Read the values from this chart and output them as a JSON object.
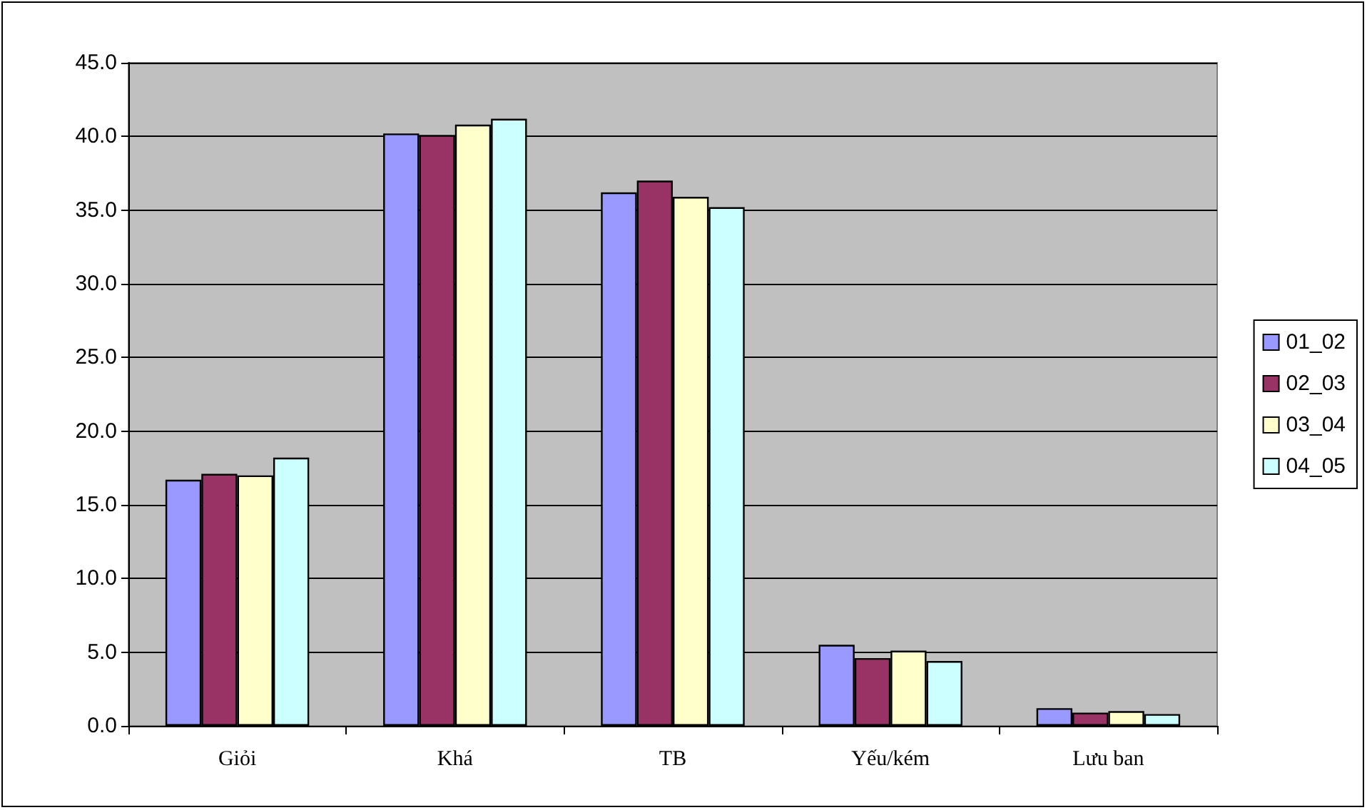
{
  "chart_data": {
    "type": "bar",
    "categories": [
      "Giỏi",
      "Khá",
      "TB",
      "Yếu/kém",
      "Lưu ban"
    ],
    "series": [
      {
        "name": "01_02",
        "color": "#9999ff",
        "values": [
          16.7,
          40.2,
          36.2,
          5.5,
          1.2
        ]
      },
      {
        "name": "02_03",
        "color": "#993366",
        "values": [
          17.1,
          40.1,
          37.0,
          4.6,
          0.9
        ]
      },
      {
        "name": "03_04",
        "color": "#ffffcc",
        "values": [
          17.0,
          40.8,
          35.9,
          5.1,
          1.0
        ]
      },
      {
        "name": "04_05",
        "color": "#ccffff",
        "values": [
          18.2,
          41.2,
          35.2,
          4.4,
          0.8
        ]
      }
    ],
    "ylim": [
      0,
      45
    ],
    "yticks": [
      {
        "value": 0,
        "label": "0.0"
      },
      {
        "value": 5,
        "label": "5.0"
      },
      {
        "value": 10,
        "label": "10.0"
      },
      {
        "value": 15,
        "label": "15.0"
      },
      {
        "value": 20,
        "label": "20.0"
      },
      {
        "value": 25,
        "label": "25.0"
      },
      {
        "value": 30,
        "label": "30.0"
      },
      {
        "value": 35,
        "label": "35.0"
      },
      {
        "value": 40,
        "label": "40.0"
      },
      {
        "value": 45,
        "label": "45.0"
      }
    ],
    "grid": "y",
    "legend": "right"
  }
}
